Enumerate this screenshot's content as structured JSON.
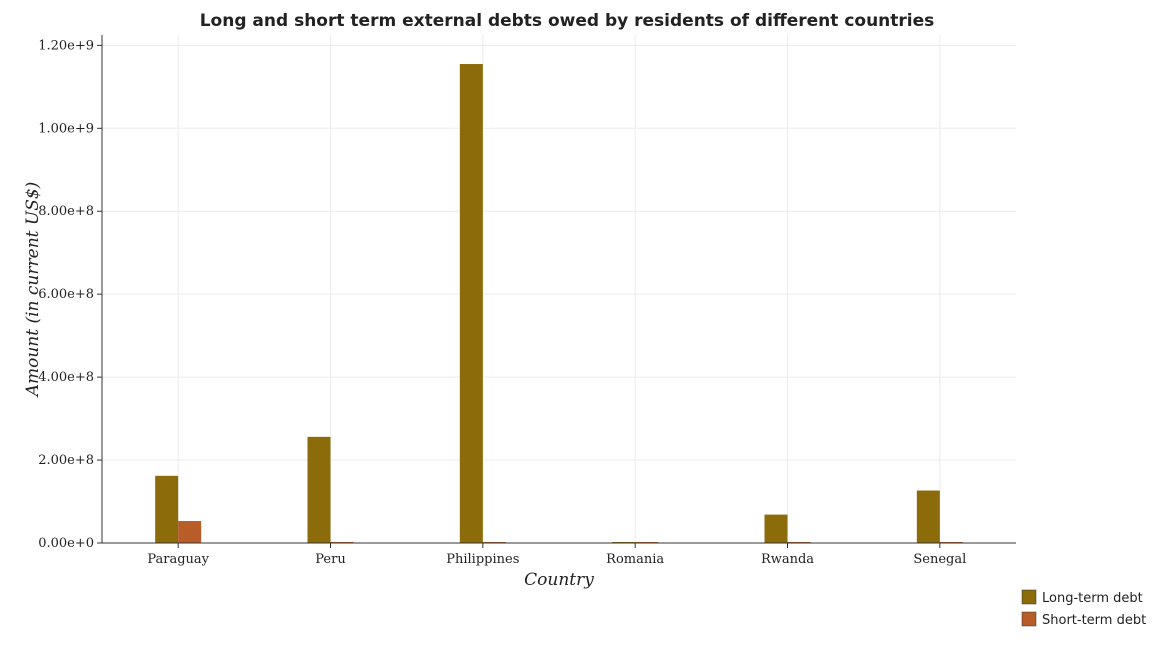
{
  "chart_data": {
    "type": "bar",
    "title": "Long and short term external debts owed by residents of different countries",
    "xlabel": "Country",
    "ylabel": "Amount (in current US$)",
    "categories": [
      "Paraguay",
      "Peru",
      "Philippines",
      "Romania",
      "Rwanda",
      "Senegal"
    ],
    "series": [
      {
        "name": "Long-term debt",
        "color": "#8b6b0a",
        "values": [
          162000000,
          256000000,
          1155000000,
          0,
          68500000,
          126500000
        ]
      },
      {
        "name": "Short-term debt",
        "color": "#b85c28",
        "values": [
          53000000,
          0,
          0,
          0,
          0,
          0
        ]
      }
    ],
    "yticks": [
      {
        "value": 0,
        "label": "0.00e+0"
      },
      {
        "value": 200000000,
        "label": "2.00e+8"
      },
      {
        "value": 400000000,
        "label": "4.00e+8"
      },
      {
        "value": 600000000,
        "label": "6.00e+8"
      },
      {
        "value": 800000000,
        "label": "8.00e+8"
      },
      {
        "value": 1000000000,
        "label": "1.00e+9"
      },
      {
        "value": 1200000000,
        "label": "1.20e+9"
      }
    ],
    "ylim": [
      0,
      1225000000
    ],
    "grid": true,
    "legend_position": "bottom-right"
  }
}
